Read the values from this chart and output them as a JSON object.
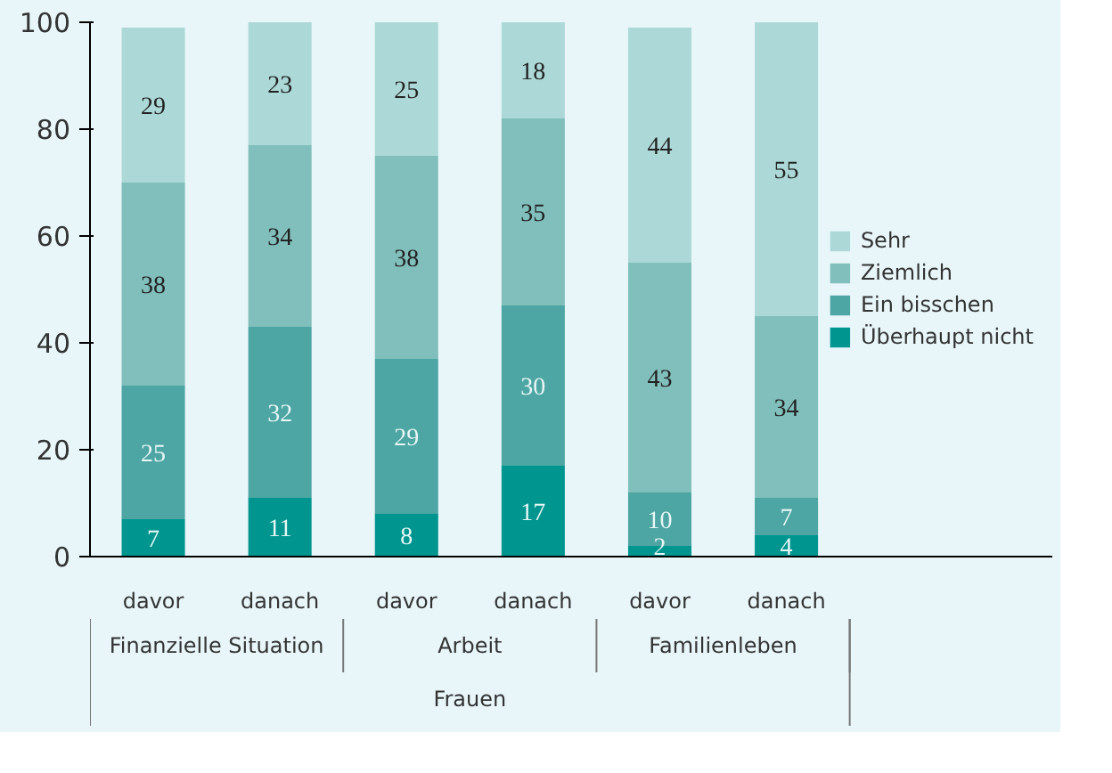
{
  "chart_data": {
    "type": "bar",
    "stacked": true,
    "categories": [
      "davor",
      "danach",
      "davor",
      "danach",
      "davor",
      "danach"
    ],
    "annotations": [
      "Finanzielle Situation",
      "Arbeit",
      "Familienleben",
      "Frauen"
    ],
    "series": [
      {
        "name": "Überhaupt nicht",
        "color": "#00968f",
        "values": [
          7,
          11,
          8,
          17,
          2,
          4
        ]
      },
      {
        "name": "Ein bisschen",
        "color": "#4da6a3",
        "values": [
          25,
          32,
          29,
          30,
          10,
          7
        ]
      },
      {
        "name": "Ziemlich",
        "color": "#80bfbb",
        "values": [
          38,
          34,
          38,
          35,
          43,
          34
        ]
      },
      {
        "name": "Sehr",
        "color": "#acd9d7",
        "values": [
          29,
          23,
          25,
          18,
          44,
          55
        ]
      }
    ],
    "ylim": [
      0,
      100
    ],
    "yticks": [
      0,
      20,
      40,
      60,
      80,
      100
    ],
    "grid": false,
    "legend": "right",
    "data_labels": true
  }
}
